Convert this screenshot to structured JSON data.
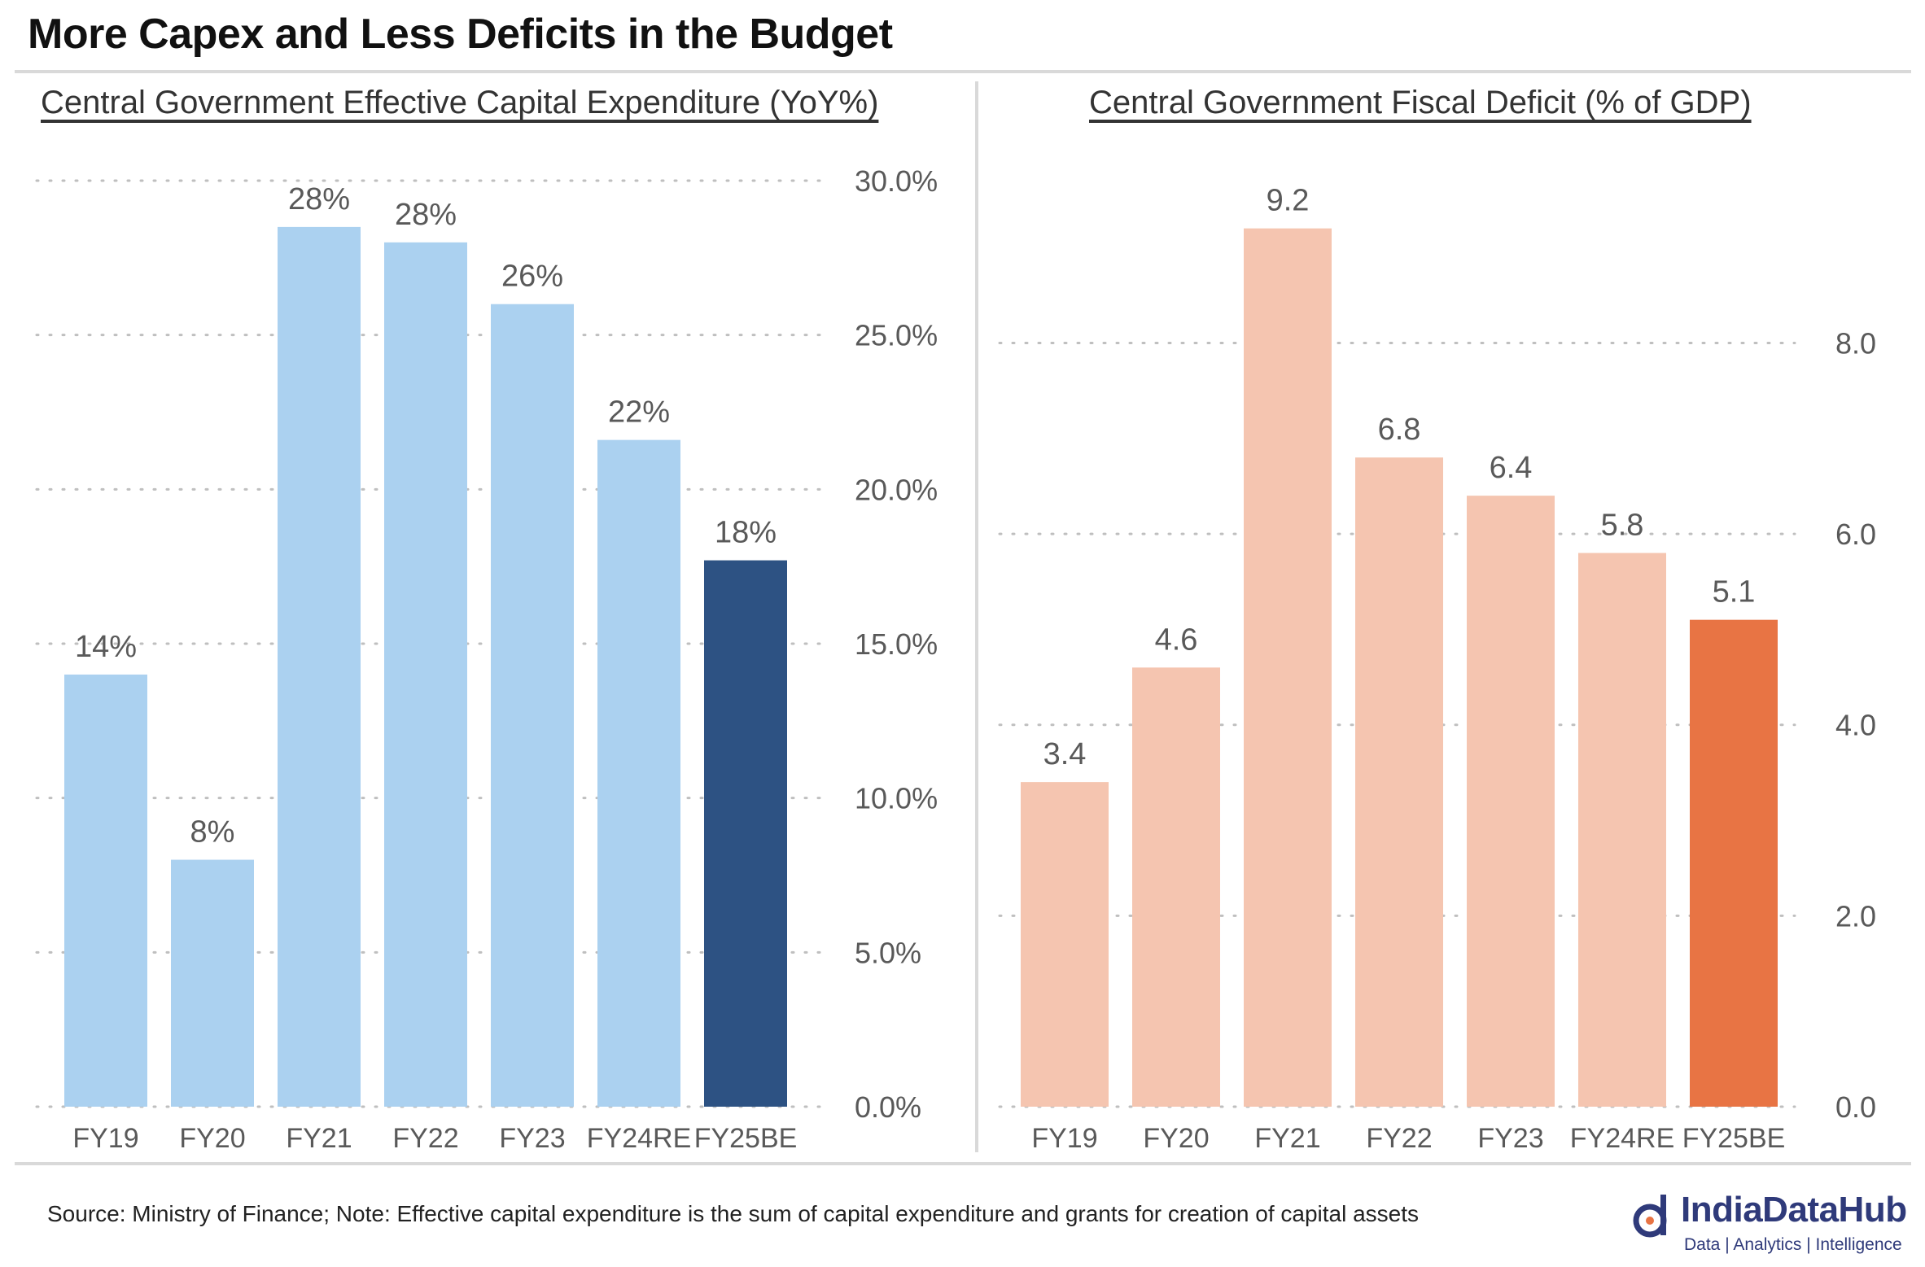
{
  "page": {
    "title": "More Capex and Less Deficits in the Budget",
    "source": "Source: Ministry of Finance; Note: Effective capital expenditure is the sum of capital expenditure and grants for creation of capital assets",
    "logo_name": "IndiaDataHub",
    "logo_tagline": "Data | Analytics | Intelligence"
  },
  "colors": {
    "capex_bar": "#abd1f0",
    "capex_highlight": "#2d5283",
    "deficit_bar": "#f5c5b0",
    "deficit_highlight": "#e87444",
    "grid": "#bfbfbf",
    "text": "#595959",
    "logo": "#2f3a7a"
  },
  "chart_data": [
    {
      "type": "bar",
      "title": "Central Government Effective Capital Expenditure (YoY%)",
      "categories": [
        "FY19",
        "FY20",
        "FY21",
        "FY22",
        "FY23",
        "FY24RE",
        "FY25BE"
      ],
      "values": [
        14,
        8,
        28.5,
        28,
        26,
        21.6,
        17.7
      ],
      "data_labels": [
        "14%",
        "8%",
        "28%",
        "28%",
        "26%",
        "22%",
        "18%"
      ],
      "highlight_index": 6,
      "ylim": [
        0,
        30
      ],
      "yticks": [
        0,
        5,
        10,
        15,
        20,
        25,
        30
      ],
      "ytick_labels": [
        "0.0%",
        "5.0%",
        "10.0%",
        "15.0%",
        "20.0%",
        "25.0%",
        "30.0%"
      ],
      "yaxis_position": "right",
      "grid": "dotted horizontal"
    },
    {
      "type": "bar",
      "title": "Central Government Fiscal Deficit (% of GDP)",
      "categories": [
        "FY19",
        "FY20",
        "FY21",
        "FY22",
        "FY23",
        "FY24RE",
        "FY25BE"
      ],
      "values": [
        3.4,
        4.6,
        9.2,
        6.8,
        6.4,
        5.8,
        5.1
      ],
      "data_labels": [
        "3.4",
        "4.6",
        "9.2",
        "6.8",
        "6.4",
        "5.8",
        "5.1"
      ],
      "highlight_index": 6,
      "ylim": [
        0,
        9.7
      ],
      "yticks": [
        0,
        2,
        4,
        6,
        8
      ],
      "ytick_labels": [
        "0.0",
        "2.0",
        "4.0",
        "6.0",
        "8.0"
      ],
      "yaxis_position": "right",
      "grid": "dotted horizontal"
    }
  ]
}
